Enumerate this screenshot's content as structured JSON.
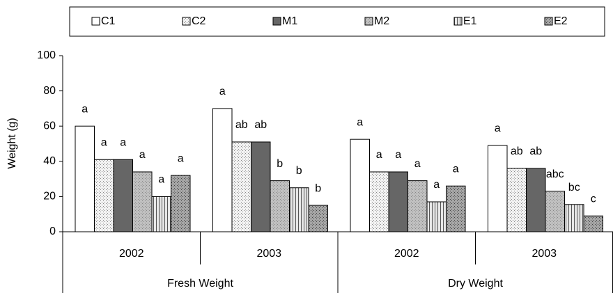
{
  "chart_data": {
    "type": "bar",
    "y_label": "Weight (g)",
    "categories": [
      "2002",
      "2003",
      "2002",
      "2003"
    ],
    "category_groups": [
      "Fresh Weight",
      "Dry Weight"
    ],
    "ylim": [
      0,
      100
    ],
    "yticks": [
      0,
      20,
      40,
      60,
      80,
      100
    ],
    "series": [
      {
        "name": "C1",
        "color": "#ffffff",
        "values": [
          60,
          70,
          52.5,
          49
        ],
        "letters": [
          "a",
          "a",
          "a",
          "a"
        ]
      },
      {
        "name": "C2",
        "color": "#f2f2f2",
        "values": [
          41,
          51,
          34,
          36
        ],
        "letters": [
          "a",
          "ab",
          "a",
          "ab"
        ]
      },
      {
        "name": "M1",
        "color": "#666666",
        "values": [
          41,
          51,
          34,
          36
        ],
        "letters": [
          "a",
          "ab",
          "a",
          "ab"
        ]
      },
      {
        "name": "M2",
        "color": "#c0c0c0",
        "values": [
          34,
          29,
          29,
          23
        ],
        "letters": [
          "a",
          "b",
          "a",
          "abc"
        ]
      },
      {
        "name": "E1",
        "color": "#e6e6e6",
        "values": [
          20,
          25,
          17,
          15.5
        ],
        "letters": [
          "a",
          "b",
          "a",
          "bc"
        ]
      },
      {
        "name": "E2",
        "color": "#a6a6a6",
        "values": [
          32,
          15,
          26,
          9
        ],
        "letters": [
          "a",
          "b",
          "a",
          "c"
        ]
      }
    ]
  }
}
